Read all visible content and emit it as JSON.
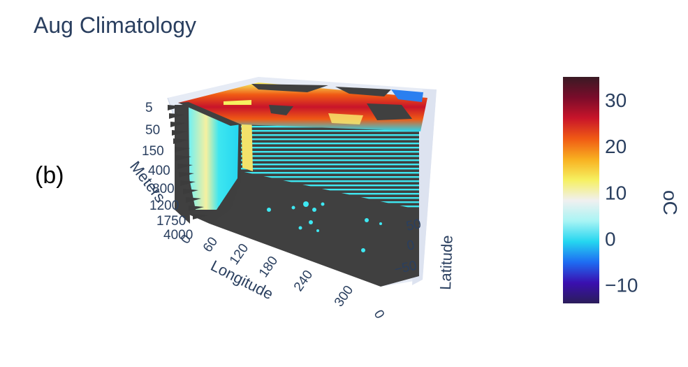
{
  "title": "Aug Climatology",
  "panel_label": "(b)",
  "chart_data": {
    "type": "heatmap",
    "title": "Aug Climatology",
    "variable_unit": "oC",
    "axes": {
      "x": {
        "label": "Longitude",
        "ticks": [
          "0",
          "60",
          "120",
          "180",
          "240",
          "300",
          "0"
        ]
      },
      "y": {
        "label": "Latitude",
        "ticks": [
          "50",
          "0",
          "−50"
        ]
      },
      "z": {
        "label": "Meters",
        "ticks": [
          "5",
          "50",
          "150",
          "400",
          "800",
          "1200",
          "1750",
          "4000",
          "0"
        ]
      }
    },
    "colorbar": {
      "title": "oC",
      "range": [
        -14,
        35
      ],
      "ticks": [
        {
          "value": 30,
          "label": "30"
        },
        {
          "value": 20,
          "label": "20"
        },
        {
          "value": 10,
          "label": "10"
        },
        {
          "value": 0,
          "label": "0"
        },
        {
          "value": -10,
          "label": "−10"
        }
      ],
      "colorscale": [
        "#2b1d5a",
        "#3a0fb0",
        "#1e6cf2",
        "#25d6f0",
        "#a8f4f4",
        "#f0f0f0",
        "#f6f060",
        "#f8b020",
        "#f05a14",
        "#c8142a",
        "#7a0c2a",
        "#3a1a24"
      ]
    },
    "land_color": "#404040"
  }
}
